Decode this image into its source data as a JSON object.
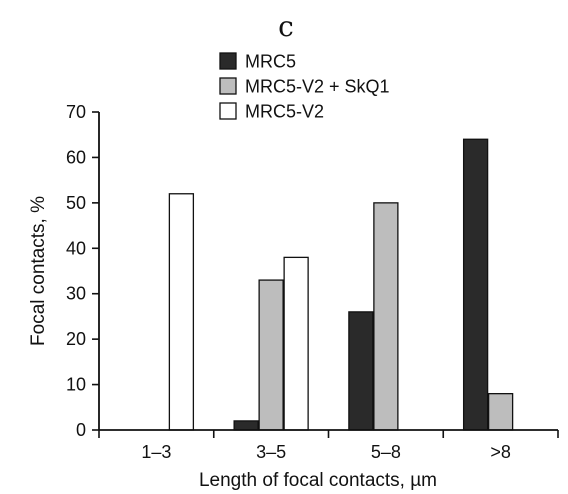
{
  "chart_data": {
    "type": "bar",
    "panel_label": "c",
    "xlabel": "Length of focal contacts, µm",
    "ylabel": "Focal contacts, %",
    "categories": [
      "1–3",
      "3–5",
      "5–8",
      ">8"
    ],
    "ylim": [
      0,
      70
    ],
    "yticks": [
      "0",
      "10",
      "20",
      "30",
      "40",
      "50",
      "60",
      "70"
    ],
    "grid": false,
    "legend_position": "top-left",
    "series": [
      {
        "name": "MRC5",
        "color": "#2a2a2a",
        "values": [
          0,
          2,
          26,
          64
        ]
      },
      {
        "name": "MRC5-V2 + SkQ1",
        "color": "#bdbdbd",
        "values": [
          0,
          33,
          50,
          8
        ]
      },
      {
        "name": "MRC5-V2",
        "color": "#ffffff",
        "values": [
          52,
          38,
          0,
          0
        ]
      }
    ]
  }
}
